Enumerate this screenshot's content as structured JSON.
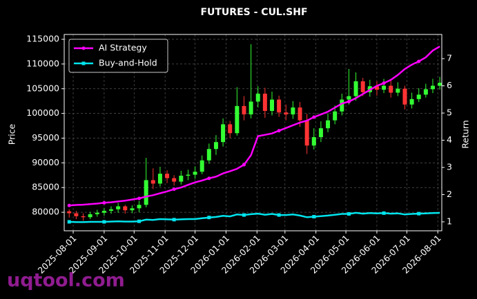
{
  "chart_data": {
    "type": "candlestick",
    "title": "FUTURES - CUL.SHF",
    "ylabel": "Price",
    "y2label": "Return",
    "x": [
      "2025-07-28",
      "2025-08-04",
      "2025-08-11",
      "2025-08-18",
      "2025-08-25",
      "2025-09-01",
      "2025-09-08",
      "2025-09-15",
      "2025-09-22",
      "2025-09-29",
      "2025-10-06",
      "2025-10-13",
      "2025-10-20",
      "2025-10-27",
      "2025-11-03",
      "2025-11-10",
      "2025-11-17",
      "2025-11-24",
      "2025-12-01",
      "2025-12-08",
      "2025-12-15",
      "2025-12-22",
      "2025-12-29",
      "2026-01-05",
      "2026-01-12",
      "2026-01-19",
      "2026-01-26",
      "2026-02-02",
      "2026-02-09",
      "2026-02-16",
      "2026-02-23",
      "2026-03-02",
      "2026-03-09",
      "2026-03-16",
      "2026-03-23",
      "2026-03-30",
      "2026-04-06",
      "2026-04-13",
      "2026-04-20",
      "2026-04-27",
      "2026-05-04",
      "2026-05-11",
      "2026-05-18",
      "2026-05-25",
      "2026-06-01",
      "2026-06-08",
      "2026-06-15",
      "2026-06-22",
      "2026-06-29",
      "2026-07-06",
      "2026-07-13",
      "2026-07-20",
      "2026-07-27",
      "2026-08-03"
    ],
    "xlim": [
      "2025-07-23",
      "2026-08-05"
    ],
    "xticks": [
      "2025-08-01",
      "2025-09-01",
      "2025-10-01",
      "2025-11-01",
      "2025-12-01",
      "2026-01-01",
      "2026-02-01",
      "2026-03-01",
      "2026-04-01",
      "2026-05-01",
      "2026-06-01",
      "2026-07-01",
      "2026-08-01"
    ],
    "ylim": [
      76250,
      115980
    ],
    "yticks": [
      80000,
      85000,
      90000,
      95000,
      100000,
      105000,
      110000,
      115000
    ],
    "y2lim": [
      0.67,
      7.89
    ],
    "y2ticks": [
      1,
      2,
      3,
      4,
      5,
      6,
      7
    ],
    "grid": true,
    "legend": "upper left",
    "up_color": "#33ff33",
    "down_color": "#ff3333",
    "candles": {
      "open": [
        80200,
        79800,
        79200,
        79000,
        79600,
        79900,
        80300,
        80600,
        81200,
        80400,
        80800,
        81500,
        86500,
        85800,
        87800,
        86900,
        86200,
        87400,
        87600,
        88200,
        90500,
        92800,
        94200,
        97800,
        96000,
        101500,
        99800,
        102400,
        104000,
        100500,
        102800,
        100200,
        99800,
        101200,
        98600,
        93500,
        95200,
        97000,
        98600,
        100400,
        102800,
        103500,
        106500,
        104300,
        105500,
        104800,
        105600,
        104200,
        105000,
        101800,
        102900,
        103800,
        104900,
        105600
      ],
      "high": [
        80600,
        80300,
        79800,
        80100,
        80500,
        80900,
        81200,
        81900,
        81500,
        81400,
        82300,
        91000,
        88900,
        89200,
        88500,
        87500,
        88400,
        88600,
        89300,
        91500,
        93900,
        95600,
        99000,
        98500,
        105300,
        103500,
        114000,
        105500,
        105200,
        104400,
        103600,
        101800,
        102500,
        102300,
        99900,
        97000,
        98400,
        100000,
        101600,
        104000,
        109000,
        108300,
        107200,
        106800,
        106500,
        107000,
        106900,
        106300,
        105600,
        104200,
        105100,
        106000,
        107000,
        107400
      ],
      "low": [
        78900,
        78600,
        78300,
        78600,
        79100,
        79300,
        79700,
        79900,
        79700,
        79800,
        80000,
        81000,
        84700,
        85200,
        85900,
        85400,
        85600,
        86500,
        86800,
        87700,
        89800,
        91600,
        93300,
        95000,
        95500,
        98600,
        99000,
        101200,
        99100,
        99600,
        99300,
        98600,
        98900,
        97300,
        91800,
        92700,
        94200,
        96200,
        97800,
        99600,
        101800,
        102600,
        103500,
        103400,
        103600,
        104100,
        103200,
        103500,
        100800,
        101000,
        102300,
        103200,
        104100,
        104800
      ],
      "close": [
        79800,
        79200,
        79000,
        79600,
        79900,
        80300,
        80600,
        81200,
        80400,
        80800,
        81500,
        86500,
        85800,
        87800,
        86900,
        86200,
        87400,
        87600,
        88200,
        90500,
        92800,
        94200,
        97800,
        96000,
        101500,
        99800,
        102400,
        104000,
        100500,
        102800,
        100200,
        99800,
        101200,
        98600,
        93500,
        95200,
        97000,
        98600,
        100400,
        102800,
        103500,
        106500,
        104300,
        105500,
        104800,
        105600,
        104200,
        105000,
        101800,
        102900,
        103800,
        104900,
        105600,
        106200
      ]
    },
    "series": [
      {
        "name": "AI Strategy",
        "color": "#ff00ff",
        "axis": "y2",
        "marker": "circle",
        "values": [
          1.6,
          1.62,
          1.63,
          1.65,
          1.67,
          1.7,
          1.72,
          1.75,
          1.78,
          1.82,
          1.86,
          1.93,
          1.98,
          2.05,
          2.12,
          2.2,
          2.26,
          2.36,
          2.45,
          2.52,
          2.6,
          2.66,
          2.78,
          2.86,
          2.95,
          3.1,
          3.45,
          4.15,
          4.2,
          4.25,
          4.35,
          4.45,
          4.55,
          4.65,
          4.72,
          4.85,
          4.95,
          5.05,
          5.2,
          5.35,
          5.42,
          5.55,
          5.7,
          5.85,
          6.0,
          6.1,
          6.22,
          6.4,
          6.62,
          6.78,
          6.9,
          7.05,
          7.3,
          7.45
        ]
      },
      {
        "name": "Buy-and-Hold",
        "color": "#00e5ee",
        "axis": "y2",
        "marker": "square",
        "values": [
          1.0,
          0.99,
          0.99,
          1.0,
          1.0,
          1.0,
          1.01,
          1.02,
          1.01,
          1.01,
          1.02,
          1.08,
          1.07,
          1.1,
          1.09,
          1.08,
          1.09,
          1.1,
          1.1,
          1.13,
          1.16,
          1.18,
          1.22,
          1.2,
          1.27,
          1.25,
          1.28,
          1.3,
          1.26,
          1.29,
          1.25,
          1.25,
          1.27,
          1.23,
          1.17,
          1.19,
          1.21,
          1.23,
          1.26,
          1.29,
          1.29,
          1.33,
          1.3,
          1.32,
          1.31,
          1.32,
          1.3,
          1.31,
          1.27,
          1.29,
          1.3,
          1.31,
          1.32,
          1.33
        ]
      }
    ]
  },
  "watermark": "uqtool.com"
}
